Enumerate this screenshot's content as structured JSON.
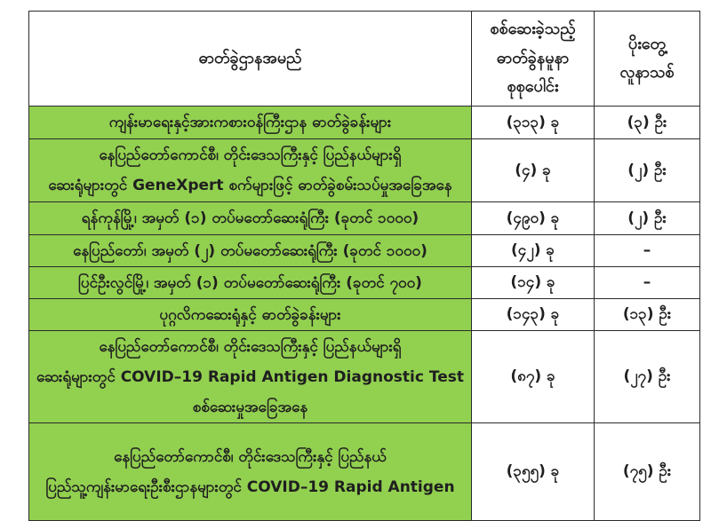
{
  "colors": {
    "highlight_green": "#92d050",
    "border": "#2b2b2b",
    "text": "#1f1f1f",
    "page_background": "#ffffff"
  },
  "table": {
    "columns": [
      {
        "id": "lab_name",
        "label": "ဓာတ်ခွဲဌာနအမည်"
      },
      {
        "id": "samples_tested",
        "label": "စစ်ဆေးခဲ့သည့်\nဓာတ်ခွဲနမူနာ\nစုစုပေါင်း"
      },
      {
        "id": "new_positives",
        "label": "ပိုးတွေ့\nလူနာသစ်"
      }
    ],
    "rows": [
      {
        "name": "ကျန်းမာရေးနှင့်အားကစားဝန်ကြီးဌာန ဓာတ်ခွဲခန်းများ",
        "samples": "(၃၁၃) ခု",
        "positives": "(၃) ဦး"
      },
      {
        "name": "နေပြည်တော်ကောင်စီ၊ တိုင်းဒေသကြီးနှင့် ပြည်နယ်များရှိ\nဆေးရုံများတွင် GeneXpert စက်များဖြင့် ဓာတ်ခွဲစမ်းသပ်မှုအခြေအနေ",
        "samples": "(၄) ခု",
        "positives": "(၂) ဦး"
      },
      {
        "name": "ရန်ကုန်မြို့၊ အမှတ် (၁) တပ်မတော်ဆေးရုံကြီး (ခုတင် ၁၀၀၀)",
        "samples": "(၄၉၀) ခု",
        "positives": "(၂) ဦး"
      },
      {
        "name": "နေပြည်တော်၊ အမှတ် (၂) တပ်မတော်ဆေးရုံကြီး (ခုတင် ၁၀၀၀)",
        "samples": "(၄၂) ခု",
        "positives": "–"
      },
      {
        "name": "ပြင်ဦးလွင်မြို့၊ အမှတ် (၁) တပ်မတော်ဆေးရုံကြီး (ခုတင် ၇၀၀)",
        "samples": "(၁၄) ခု",
        "positives": "–"
      },
      {
        "name": "ပုဂ္ဂလိကဆေးရုံနှင့် ဓာတ်ခွဲခန်းများ",
        "samples": "(၁၄၃) ခု",
        "positives": "(၁၃) ဦး"
      },
      {
        "name": "နေပြည်တော်ကောင်စီ၊ တိုင်းဒေသကြီးနှင့် ပြည်နယ်များရှိ\nဆေးရုံများတွင် COVID–19 Rapid Antigen Diagnostic Test\nစစ်ဆေးမှုအခြေအနေ",
        "samples": "(၈၇) ခု",
        "positives": "(၂၇) ဦး"
      },
      {
        "name": "နေပြည်တော်ကောင်စီ၊ တိုင်းဒေသကြီးနှင့် ပြည်နယ်\nပြည်သူ့ကျန်းမာရေးဦးစီးဌာနများတွင်  COVID–19 Rapid Antigen",
        "samples": "(၃၅၅) ခု",
        "positives": "(၇၅) ဦး"
      }
    ]
  }
}
